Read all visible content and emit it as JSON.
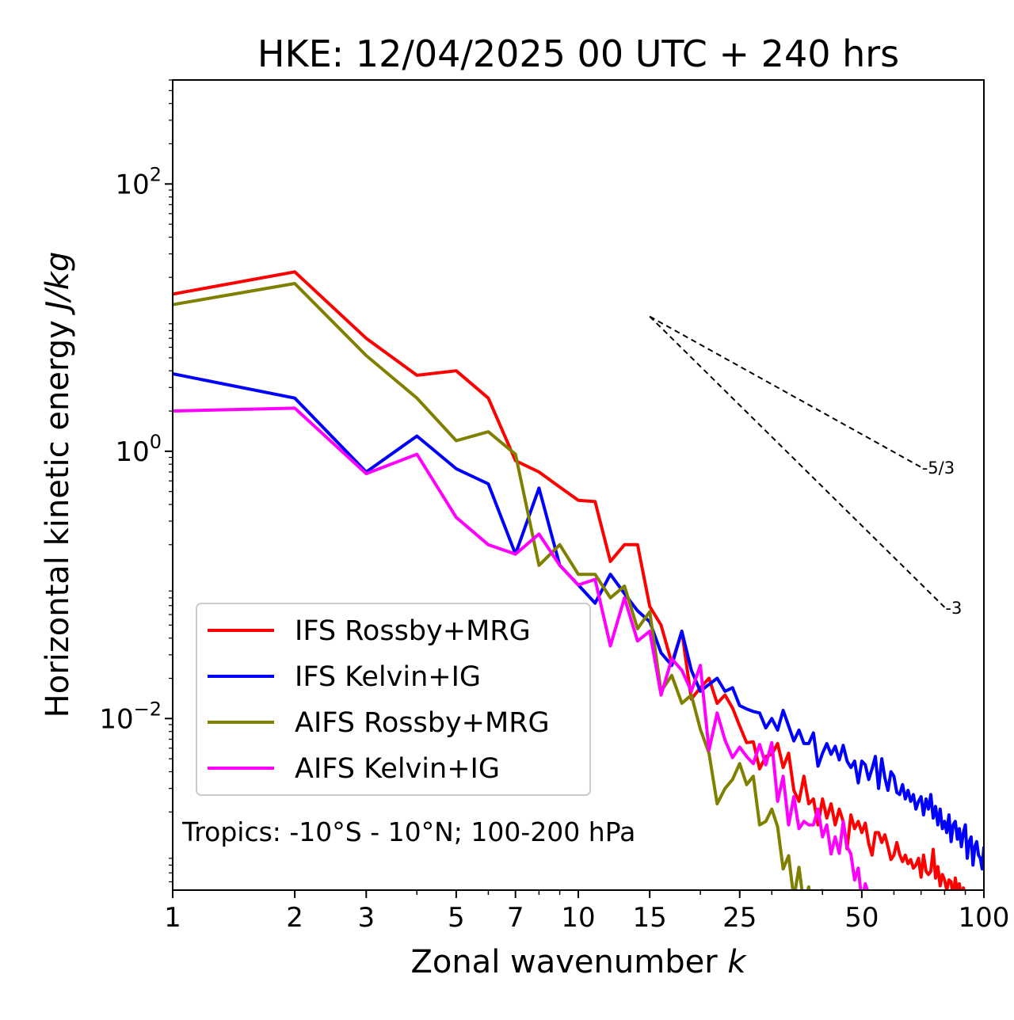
{
  "chart_data": {
    "type": "line",
    "title": "HKE: 12/04/2025 00 UTC + 240 hrs",
    "xlabel": "Zonal wavenumber",
    "xlabel_var": "k",
    "ylabel": "Horizontal kinetic energy",
    "ylabel_unit": "J/kg",
    "xscale": "log",
    "yscale": "log",
    "xlim": [
      1,
      100
    ],
    "ylim": [
      0.00052,
      600
    ],
    "x_ticks": [
      1,
      2,
      3,
      5,
      7,
      10,
      15,
      25,
      50,
      100
    ],
    "x_tick_labels": [
      "1",
      "2",
      "3",
      "5",
      "7",
      "10",
      "15",
      "25",
      "50",
      "100"
    ],
    "y_ticks": [
      0.01,
      1,
      100
    ],
    "y_tick_labels": [
      {
        "base": "10",
        "exp": "−2"
      },
      {
        "base": "10",
        "exp": "0"
      },
      {
        "base": "10",
        "exp": "2"
      }
    ],
    "grid": false,
    "legend_position": "lower-left",
    "annotation": "Tropics: -10°S - 10°N; 100-200 hPa",
    "reference_slopes": [
      {
        "label": "-5/3",
        "x": [
          15,
          70
        ],
        "y": [
          10.2,
          0.76
        ]
      },
      {
        "label": "-3",
        "x": [
          15,
          80
        ],
        "y": [
          10.2,
          0.068
        ]
      }
    ],
    "series": [
      {
        "name": "IFS Rossby+MRG",
        "color": "#ff0000",
        "x": [
          1,
          2,
          3,
          4,
          5,
          6,
          7,
          8,
          9,
          10,
          11,
          12,
          13,
          14,
          15,
          16,
          17,
          18,
          19,
          20,
          21,
          22,
          23,
          24,
          25,
          26,
          27,
          28,
          29,
          30,
          31,
          32,
          33,
          34,
          35,
          36,
          37,
          38,
          39,
          40,
          41,
          42,
          43,
          44,
          45,
          46,
          47,
          48,
          49,
          50,
          51,
          52,
          53,
          54,
          55,
          56,
          57,
          58,
          59,
          60,
          61,
          62,
          63,
          64,
          65,
          66,
          67,
          68,
          69,
          70,
          71,
          72,
          73,
          74,
          75,
          76,
          77,
          78,
          79,
          80,
          81,
          82,
          83,
          84,
          85,
          86,
          87,
          88,
          89,
          90,
          91,
          92,
          93,
          94,
          95,
          96,
          97,
          98,
          99,
          100
        ],
        "y": [
          15,
          22,
          7,
          3.7,
          4,
          2.5,
          0.85,
          0.7,
          0.54,
          0.43,
          0.42,
          0.15,
          0.2,
          0.2,
          0.069,
          0.05,
          0.026,
          0.045,
          0.014,
          0.017,
          0.02,
          0.013,
          0.015,
          0.012,
          0.0088,
          0.0066,
          0.0067,
          0.0042,
          0.0052,
          0.0054,
          0.0065,
          0.0043,
          0.0055,
          0.0029,
          0.0024,
          0.0037,
          0.0023,
          0.0025,
          0.0016,
          0.0025,
          0.0018,
          0.0023,
          0.0016,
          0.0021,
          0.0017,
          0.00106,
          0.0019,
          0.0015,
          0.0017,
          0.0014,
          0.00165,
          0.00116,
          0.00095,
          0.0014,
          0.0014,
          0.00118,
          0.00135,
          0.0011,
          0.00088,
          0.00095,
          0.00118,
          0.00096,
          0.00085,
          0.00095,
          0.00082,
          0.00088,
          0.00076,
          0.0008,
          0.0009,
          0.00065,
          0.00095,
          0.00072,
          0.00068,
          0.00072,
          0.00105,
          0.00064,
          0.00078,
          0.00056,
          0.00068,
          0.00062,
          0.00052,
          0.00062,
          0.0006,
          0.00046,
          0.00064,
          0.0005,
          0.00058,
          0.00044,
          0.00054,
          0.00048,
          0.00037,
          0.00045,
          0.00041,
          0.00049,
          0.00036,
          0.00042,
          0.00046,
          0.00034,
          0.00032,
          0.0003
        ]
      },
      {
        "name": "IFS Kelvin+IG",
        "color": "#0000ff",
        "x": [
          1,
          2,
          3,
          4,
          5,
          6,
          7,
          8,
          9,
          10,
          11,
          12,
          13,
          14,
          15,
          16,
          17,
          18,
          19,
          20,
          21,
          22,
          23,
          24,
          25,
          26,
          27,
          28,
          29,
          30,
          31,
          32,
          33,
          34,
          35,
          36,
          37,
          38,
          39,
          40,
          41,
          42,
          43,
          44,
          45,
          46,
          47,
          48,
          49,
          50,
          51,
          52,
          53,
          54,
          55,
          56,
          57,
          58,
          59,
          60,
          61,
          62,
          63,
          64,
          65,
          66,
          67,
          68,
          69,
          70,
          71,
          72,
          73,
          74,
          75,
          76,
          77,
          78,
          79,
          80,
          81,
          82,
          83,
          84,
          85,
          86,
          87,
          88,
          89,
          90,
          91,
          92,
          93,
          94,
          95,
          96,
          97,
          98,
          99,
          100
        ],
        "y": [
          3.8,
          2.5,
          0.7,
          1.3,
          0.74,
          0.57,
          0.17,
          0.53,
          0.14,
          0.1,
          0.073,
          0.12,
          0.086,
          0.064,
          0.053,
          0.031,
          0.025,
          0.045,
          0.023,
          0.016,
          0.018,
          0.02,
          0.016,
          0.017,
          0.0125,
          0.0118,
          0.0113,
          0.011,
          0.0085,
          0.01,
          0.0082,
          0.0115,
          0.0088,
          0.0068,
          0.0082,
          0.0065,
          0.0065,
          0.0078,
          0.0044,
          0.0055,
          0.0065,
          0.0054,
          0.0062,
          0.0049,
          0.0063,
          0.0048,
          0.0043,
          0.0048,
          0.0033,
          0.0048,
          0.0045,
          0.0035,
          0.0042,
          0.0052,
          0.003,
          0.005,
          0.0036,
          0.0029,
          0.004,
          0.0037,
          0.0028,
          0.0027,
          0.0032,
          0.0025,
          0.0029,
          0.0024,
          0.0027,
          0.0021,
          0.0024,
          0.0026,
          0.0019,
          0.0025,
          0.0021,
          0.0027,
          0.0018,
          0.0022,
          0.0016,
          0.0021,
          0.0015,
          0.0017,
          0.0014,
          0.0019,
          0.0012,
          0.0016,
          0.0017,
          0.00125,
          0.0015,
          0.0011,
          0.0014,
          0.0016,
          0.0009,
          0.0012,
          0.0013,
          0.0008,
          0.0011,
          0.0012,
          0.00095,
          0.0009,
          0.00075,
          0.0011
        ]
      },
      {
        "name": "AIFS Rossby+MRG",
        "color": "#808000",
        "x": [
          1,
          2,
          3,
          4,
          5,
          6,
          7,
          8,
          9,
          10,
          11,
          12,
          13,
          14,
          15,
          16,
          17,
          18,
          19,
          20,
          21,
          22,
          23,
          24,
          25,
          26,
          27,
          28,
          29,
          30,
          31,
          32,
          33,
          34,
          35,
          36,
          37,
          38,
          39,
          40
        ],
        "y": [
          12.5,
          18,
          5.2,
          2.5,
          1.2,
          1.4,
          0.95,
          0.14,
          0.2,
          0.12,
          0.12,
          0.08,
          0.098,
          0.047,
          0.063,
          0.016,
          0.021,
          0.013,
          0.015,
          0.0083,
          0.0055,
          0.0023,
          0.003,
          0.0035,
          0.0046,
          0.0032,
          0.0037,
          0.0016,
          0.0017,
          0.0021,
          0.00155,
          0.00075,
          0.00094,
          0.00045,
          0.00077,
          0.0004,
          0.00055,
          0.0003,
          0.00035,
          0.00053
        ]
      },
      {
        "name": "AIFS Kelvin+IG",
        "color": "#ff00ff",
        "x": [
          1,
          2,
          3,
          4,
          5,
          6,
          7,
          8,
          9,
          10,
          11,
          12,
          13,
          14,
          15,
          16,
          17,
          18,
          19,
          20,
          21,
          22,
          23,
          24,
          25,
          26,
          27,
          28,
          29,
          30,
          31,
          32,
          33,
          34,
          35,
          36,
          37,
          38,
          39,
          40,
          41,
          42,
          43,
          44,
          45,
          46,
          47,
          48,
          49,
          50,
          51,
          52,
          53,
          54,
          55,
          56
        ],
        "y": [
          2,
          2.1,
          0.68,
          0.95,
          0.32,
          0.2,
          0.17,
          0.24,
          0.14,
          0.1,
          0.11,
          0.035,
          0.08,
          0.038,
          0.045,
          0.015,
          0.028,
          0.023,
          0.016,
          0.025,
          0.0058,
          0.011,
          0.0069,
          0.0051,
          0.0061,
          0.0052,
          0.0046,
          0.0064,
          0.0045,
          0.0066,
          0.0024,
          0.0037,
          0.0016,
          0.0026,
          0.0015,
          0.0017,
          0.0016,
          0.0016,
          0.0021,
          0.0013,
          0.0016,
          0.00097,
          0.0013,
          0.00098,
          0.0017,
          0.0011,
          0.00097,
          0.00062,
          0.00076,
          0.00043,
          0.00058,
          0.00048,
          0.00037,
          0.00042,
          0.00045,
          0.00046
        ]
      }
    ]
  }
}
